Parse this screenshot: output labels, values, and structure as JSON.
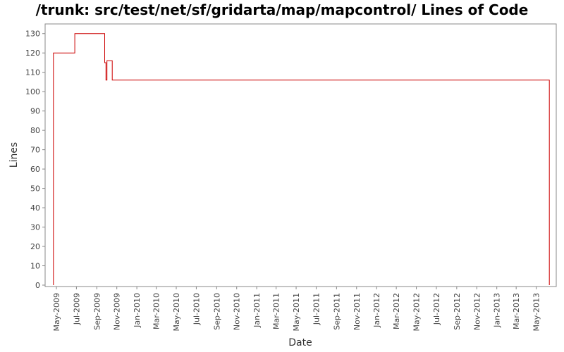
{
  "chart_data": {
    "type": "line",
    "title": "/trunk: src/test/net/sf/gridarta/map/mapcontrol/ Lines of Code",
    "xlabel": "Date",
    "ylabel": "Lines",
    "ylim": [
      0,
      135
    ],
    "yticks": [
      0,
      10,
      20,
      30,
      40,
      50,
      60,
      70,
      80,
      90,
      100,
      110,
      120,
      130
    ],
    "xlim": [
      "2009-04-01",
      "2013-07-01"
    ],
    "xticks": [
      "May-2009",
      "Jul-2009",
      "Sep-2009",
      "Nov-2009",
      "Jan-2010",
      "Mar-2010",
      "May-2010",
      "Jul-2010",
      "Sep-2010",
      "Nov-2010",
      "Jan-2011",
      "Mar-2011",
      "May-2011",
      "Jul-2011",
      "Sep-2011",
      "Nov-2011",
      "Jan-2012",
      "Mar-2012",
      "May-2012",
      "Jul-2012",
      "Sep-2012",
      "Nov-2012",
      "Jan-2013",
      "Mar-2013",
      "May-2013"
    ],
    "line_color": "#cc0000",
    "grid": false,
    "series": [
      {
        "x": [
          "2009-04-22",
          "2009-04-22",
          "2009-06-26",
          "2009-09-25",
          "2009-09-29",
          "2009-10-02",
          "2009-10-18",
          "2013-06-10",
          "2013-06-10"
        ],
        "y": [
          0,
          120,
          130,
          115,
          106,
          116,
          106,
          106,
          0
        ]
      }
    ]
  }
}
